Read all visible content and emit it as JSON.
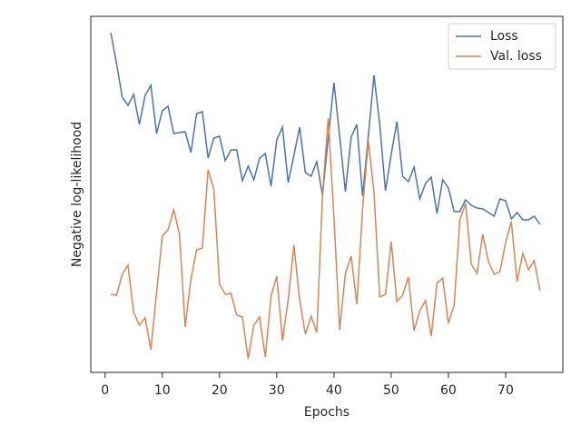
{
  "chart_data": {
    "type": "line",
    "xlabel": "Epochs",
    "ylabel": "Negative log-likelihood",
    "x": [
      1,
      2,
      3,
      4,
      5,
      6,
      7,
      8,
      9,
      10,
      11,
      12,
      13,
      14,
      15,
      16,
      17,
      18,
      19,
      20,
      21,
      22,
      23,
      24,
      25,
      26,
      27,
      28,
      29,
      30,
      31,
      32,
      33,
      34,
      35,
      36,
      37,
      38,
      39,
      40,
      41,
      42,
      43,
      44,
      45,
      46,
      47,
      48,
      49,
      50,
      51,
      52,
      53,
      54,
      55,
      56,
      57,
      58,
      59,
      60,
      61,
      62,
      63,
      64,
      65,
      66,
      67,
      68,
      69,
      70,
      71,
      72,
      73,
      74,
      75,
      76
    ],
    "series": [
      {
        "name": "Loss",
        "color": "#4c72b0",
        "values": [
          374,
          340,
          303,
          294,
          306,
          273,
          305,
          316,
          263,
          288,
          293,
          263,
          264,
          265,
          242,
          285,
          287,
          236,
          258,
          260,
          233,
          245,
          245,
          211,
          227,
          212,
          236,
          241,
          205,
          256,
          270,
          209,
          239,
          270,
          220,
          216,
          232,
          195,
          258,
          319,
          260,
          199,
          259,
          273,
          194,
          260,
          327,
          273,
          200,
          240,
          276,
          216,
          210,
          226,
          191,
          208,
          215,
          175,
          212,
          203,
          177,
          177,
          190,
          184,
          181,
          180,
          176,
          172,
          191,
          189,
          169,
          176,
          168,
          168,
          172,
          163
        ]
      },
      {
        "name": "Val. loss",
        "color": "#dd8452",
        "values": [
          86,
          85,
          108,
          118,
          66,
          52,
          60,
          25,
          88,
          150,
          157,
          179,
          152,
          50,
          103,
          135,
          137,
          223,
          202,
          97,
          86,
          87,
          63,
          61,
          15,
          52,
          61,
          17,
          84,
          106,
          35,
          80,
          140,
          80,
          42,
          62,
          44,
          196,
          280,
          170,
          47,
          109,
          128,
          75,
          180,
          255,
          198,
          83,
          86,
          144,
          78,
          85,
          105,
          46,
          68,
          79,
          40,
          98,
          104,
          54,
          74,
          168,
          186,
          119,
          109,
          152,
          122,
          108,
          111,
          143,
          166,
          100,
          131,
          113,
          123,
          90
        ]
      }
    ],
    "xlim": [
      -2.5,
      80
    ],
    "xticks": [
      0,
      10,
      20,
      30,
      40,
      50,
      60,
      70
    ],
    "ylim": [
      0,
      392
    ],
    "legend": "upper right"
  }
}
